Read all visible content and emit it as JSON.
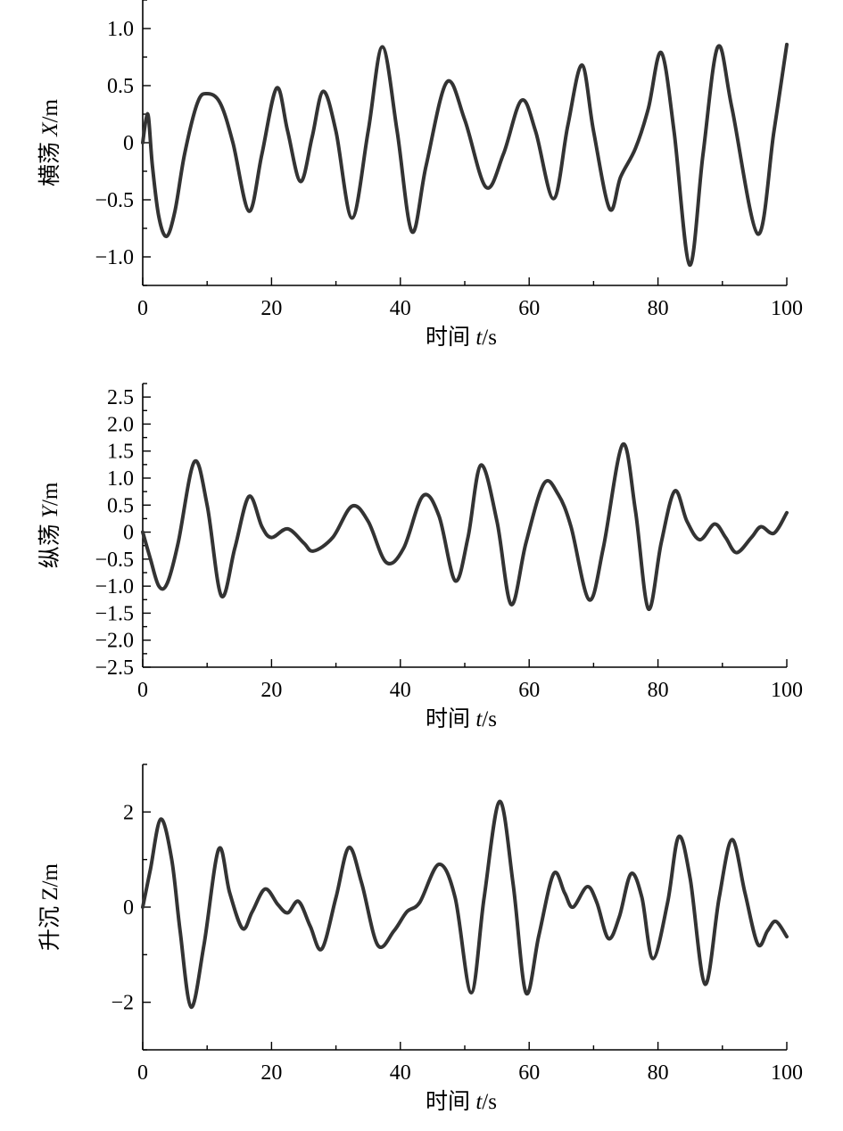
{
  "chart_data": [
    {
      "type": "line",
      "xlabel": "时间 t/s",
      "xlabel_parts": {
        "pre": "时间 ",
        "var": "t",
        "post": "/s"
      },
      "ylabel": "横荡 X/m",
      "ylabel_parts": {
        "pre": "横荡 ",
        "var": "X",
        "post": "/m"
      },
      "xlim": [
        0,
        100
      ],
      "ylim": [
        -1.25,
        1.25
      ],
      "xticks": [
        0,
        20,
        40,
        60,
        80,
        100
      ],
      "xtick_labels": [
        "0",
        "20",
        "40",
        "60",
        "80",
        "100"
      ],
      "yticks": [
        -1.0,
        -0.5,
        0,
        0.5,
        1.0
      ],
      "ytick_labels": [
        "−1.0",
        "−0.5",
        "0",
        "0.5",
        "1.0"
      ],
      "grid": false,
      "series": [
        {
          "color": "#333333",
          "x": [
            0,
            0.5,
            0.9,
            1.5,
            2.5,
            3.7,
            5,
            6.5,
            8.5,
            10,
            12,
            14,
            16.5,
            18.5,
            20.8,
            22.5,
            24.5,
            26.3,
            28,
            30,
            32.5,
            35,
            37.2,
            39.5,
            41.8,
            44,
            47.2,
            50,
            53.3,
            56,
            58.8,
            61,
            63.8,
            66,
            68.2,
            70,
            72.5,
            74.2,
            76.5,
            78.5,
            80.5,
            82.5,
            84.9,
            87,
            89.3,
            91.5,
            95.5,
            98,
            100
          ],
          "y": [
            0,
            0.2,
            0.22,
            -0.2,
            -0.65,
            -0.82,
            -0.6,
            -0.1,
            0.35,
            0.43,
            0.35,
            0,
            -0.6,
            -0.1,
            0.48,
            0.1,
            -0.34,
            0.05,
            0.45,
            0.1,
            -0.66,
            0.1,
            0.84,
            0.1,
            -0.78,
            -0.2,
            0.53,
            0.2,
            -0.39,
            -0.1,
            0.37,
            0.1,
            -0.49,
            0.15,
            0.68,
            0.1,
            -0.58,
            -0.3,
            -0.05,
            0.3,
            0.79,
            0.1,
            -1.07,
            -0.1,
            0.84,
            0.3,
            -0.8,
            0.1,
            0.86
          ]
        }
      ]
    },
    {
      "type": "line",
      "xlabel": "时间 t/s",
      "xlabel_parts": {
        "pre": "时间 ",
        "var": "t",
        "post": "/s"
      },
      "ylabel": "纵荡 Y/m",
      "ylabel_parts": {
        "pre": "纵荡 ",
        "var": "Y",
        "post": "/m"
      },
      "xlim": [
        0,
        100
      ],
      "ylim": [
        -2.5,
        2.75
      ],
      "xticks": [
        0,
        20,
        40,
        60,
        80,
        100
      ],
      "xtick_labels": [
        "0",
        "20",
        "40",
        "60",
        "80",
        "100"
      ],
      "yticks": [
        -2.5,
        -2.0,
        -1.5,
        -1.0,
        -0.5,
        0,
        0.5,
        1.0,
        1.5,
        2.0,
        2.5
      ],
      "ytick_labels": [
        "−2.5",
        "−2.0",
        "−1.5",
        "−1.0",
        "−0.5",
        "0",
        "0.5",
        "1.0",
        "1.5",
        "2.0",
        "2.5"
      ],
      "grid": false,
      "series": [
        {
          "color": "#333333",
          "x": [
            0,
            1.2,
            2.5,
            3.8,
            5.5,
            8,
            10,
            12.2,
            14.3,
            16.5,
            18.5,
            20,
            22.5,
            25,
            26.5,
            29.5,
            32.5,
            35,
            37.8,
            40.5,
            43.5,
            46,
            48.5,
            50.5,
            52.5,
            55,
            57.2,
            59.5,
            62.3,
            64.5,
            66.5,
            69.3,
            71.5,
            74.5,
            76.5,
            78.5,
            80.5,
            82.6,
            84.5,
            86.5,
            88.8,
            90.5,
            92.2,
            94.5,
            96,
            98,
            100
          ],
          "y": [
            0,
            -0.5,
            -1.0,
            -0.95,
            -0.2,
            1.3,
            0.5,
            -1.18,
            -0.3,
            0.66,
            0.1,
            -0.1,
            0.06,
            -0.2,
            -0.35,
            -0.1,
            0.48,
            0.2,
            -0.56,
            -0.3,
            0.67,
            0.3,
            -0.9,
            -0.1,
            1.24,
            0.2,
            -1.34,
            -0.2,
            0.9,
            0.7,
            0.1,
            -1.25,
            -0.3,
            1.62,
            0.4,
            -1.42,
            -0.2,
            0.76,
            0.2,
            -0.14,
            0.15,
            -0.1,
            -0.38,
            -0.1,
            0.1,
            -0.02,
            0.36
          ]
        }
      ]
    },
    {
      "type": "line",
      "xlabel": "时间 t/s",
      "xlabel_parts": {
        "pre": "时间 ",
        "var": "t",
        "post": "/s"
      },
      "ylabel": "升沉 Z/m",
      "ylabel_parts": {
        "pre": "升沉 Z/m",
        "var": "",
        "post": ""
      },
      "xlim": [
        0,
        100
      ],
      "ylim": [
        -3,
        3
      ],
      "xticks": [
        0,
        20,
        40,
        60,
        80,
        100
      ],
      "xtick_labels": [
        "0",
        "20",
        "40",
        "60",
        "80",
        "100"
      ],
      "yticks": [
        -2,
        0,
        2
      ],
      "ytick_labels": [
        "−2",
        "0",
        "2"
      ],
      "grid": false,
      "series": [
        {
          "color": "#333333",
          "x": [
            0,
            1.2,
            2.8,
            4.5,
            5.8,
            7.5,
            9.5,
            11.8,
            13.5,
            15.5,
            17,
            19,
            21,
            22.5,
            24.2,
            26,
            27.8,
            30,
            32,
            34,
            36.5,
            39,
            41,
            43,
            46,
            48.5,
            51,
            53,
            55.4,
            57.5,
            59.5,
            61.5,
            63.8,
            65.5,
            66.8,
            69,
            70.5,
            72.3,
            74,
            75.8,
            77.5,
            79.2,
            81.5,
            83.2,
            85,
            87.3,
            89.5,
            91.5,
            93.5,
            95.5,
            97,
            98.3,
            100
          ],
          "y": [
            0,
            0.8,
            1.85,
            1.0,
            -0.5,
            -2.1,
            -0.8,
            1.22,
            0.3,
            -0.45,
            -0.1,
            0.38,
            0.05,
            -0.12,
            0.12,
            -0.4,
            -0.88,
            0.2,
            1.25,
            0.5,
            -0.8,
            -0.5,
            -0.1,
            0.1,
            0.9,
            0.2,
            -1.8,
            0.2,
            2.22,
            0.5,
            -1.8,
            -0.6,
            0.7,
            0.3,
            0.0,
            0.43,
            0.1,
            -0.66,
            -0.2,
            0.7,
            0.2,
            -1.08,
            0.1,
            1.48,
            0.6,
            -1.62,
            0.2,
            1.42,
            0.3,
            -0.78,
            -0.5,
            -0.3,
            -0.62
          ]
        }
      ]
    }
  ]
}
